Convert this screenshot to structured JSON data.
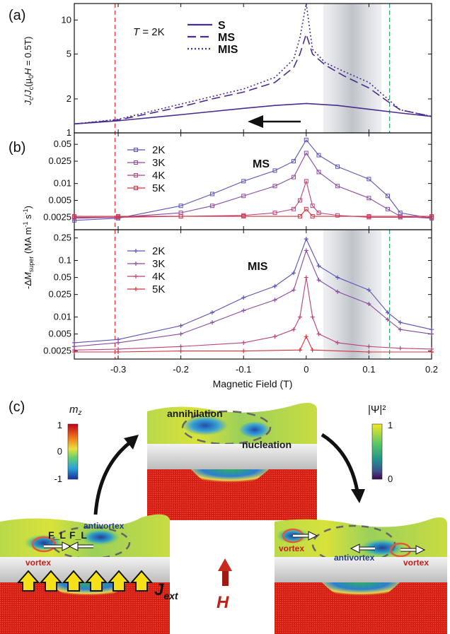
{
  "panels": {
    "a_label": "(a)",
    "b_label": "(b)",
    "c_label": "(c)"
  },
  "chart_data": [
    {
      "type": "line",
      "panel": "(a)",
      "ylabel": "J_c/J_c(μ0H = 0.5T)",
      "yscale": "log",
      "ylim": [
        1,
        14
      ],
      "xlim": [
        -0.37,
        0.2
      ],
      "yticks": [
        "1",
        "2",
        "5",
        "10"
      ],
      "annotation": "T = 2K",
      "arrow": "pointing toward negative field (sweep direction)",
      "legend_position": "top-center",
      "series": [
        {
          "name": "S",
          "style": "solid",
          "color": "#4a2c8f",
          "x": [
            -0.37,
            -0.3,
            -0.2,
            -0.1,
            -0.05,
            0.0,
            0.05,
            0.1,
            0.15,
            0.2
          ],
          "y": [
            1.2,
            1.28,
            1.45,
            1.65,
            1.75,
            1.82,
            1.75,
            1.62,
            1.5,
            1.4
          ]
        },
        {
          "name": "MS",
          "style": "dashed",
          "color": "#4a2c8f",
          "x": [
            -0.37,
            -0.3,
            -0.2,
            -0.15,
            -0.1,
            -0.05,
            -0.02,
            -0.01,
            0.0,
            0.01,
            0.03,
            0.06,
            0.1,
            0.13,
            0.15,
            0.2
          ],
          "y": [
            1.2,
            1.3,
            1.7,
            2.0,
            2.3,
            2.8,
            3.8,
            5.0,
            7.5,
            5.0,
            4.0,
            3.2,
            2.5,
            1.9,
            1.6,
            1.4
          ]
        },
        {
          "name": "MIS",
          "style": "dotted",
          "color": "#4a2c8f",
          "x": [
            -0.37,
            -0.3,
            -0.2,
            -0.15,
            -0.1,
            -0.05,
            -0.02,
            -0.01,
            0.0,
            0.01,
            0.03,
            0.06,
            0.1,
            0.13,
            0.15,
            0.2
          ],
          "y": [
            1.2,
            1.32,
            1.8,
            2.1,
            2.45,
            3.1,
            4.5,
            7.0,
            14.0,
            5.5,
            4.2,
            3.5,
            2.8,
            2.0,
            1.6,
            1.4
          ]
        }
      ]
    },
    {
      "type": "line",
      "panel": "(b) top",
      "title": "MS",
      "yscale": "log",
      "ylim": [
        0.0015,
        0.08
      ],
      "yticks": [
        "0.0025",
        "0.005",
        "0.01",
        "0.025",
        "0.05"
      ],
      "legend_position": "top-left",
      "series": [
        {
          "name": "2K",
          "color": "#5b52b8",
          "x": [
            -0.37,
            -0.3,
            -0.2,
            -0.15,
            -0.1,
            -0.05,
            -0.02,
            0.0,
            0.02,
            0.05,
            0.1,
            0.13,
            0.15,
            0.2
          ],
          "y": [
            0.0022,
            0.0024,
            0.004,
            0.0065,
            0.011,
            0.017,
            0.025,
            0.06,
            0.032,
            0.02,
            0.012,
            0.006,
            0.003,
            0.0024
          ]
        },
        {
          "name": "3K",
          "color": "#8a4aa0",
          "x": [
            -0.37,
            -0.3,
            -0.2,
            -0.15,
            -0.1,
            -0.05,
            -0.02,
            0.0,
            0.02,
            0.05,
            0.1,
            0.13,
            0.15,
            0.2
          ],
          "y": [
            0.0024,
            0.0025,
            0.003,
            0.004,
            0.006,
            0.009,
            0.013,
            0.035,
            0.016,
            0.009,
            0.0055,
            0.0035,
            0.0026,
            0.0024
          ]
        },
        {
          "name": "4K",
          "color": "#b8427a",
          "x": [
            -0.37,
            -0.3,
            -0.2,
            -0.1,
            -0.05,
            -0.02,
            -0.01,
            0.0,
            0.01,
            0.02,
            0.05,
            0.1,
            0.15,
            0.2
          ],
          "y": [
            0.0025,
            0.0025,
            0.0026,
            0.0027,
            0.003,
            0.0035,
            0.005,
            0.011,
            0.004,
            0.003,
            0.0027,
            0.0025,
            0.0025,
            0.0025
          ]
        },
        {
          "name": "5K",
          "color": "#d6323c",
          "x": [
            -0.37,
            -0.3,
            -0.2,
            -0.1,
            -0.01,
            0.0,
            0.01,
            0.1,
            0.2
          ],
          "y": [
            0.0026,
            0.0026,
            0.0026,
            0.0026,
            0.0026,
            0.0035,
            0.0026,
            0.0026,
            0.0026
          ]
        }
      ]
    },
    {
      "type": "line",
      "panel": "(b) bottom",
      "title": "MIS",
      "yscale": "log",
      "ylim": [
        0.0018,
        0.35
      ],
      "yticks": [
        "0.0025",
        "0.005",
        "0.01",
        "0.025",
        "0.05",
        "0.1",
        "0.25"
      ],
      "xlabel": "Magnetic Field (T)",
      "xticks": [
        "-0.3",
        "-0.2",
        "-0.1",
        "0",
        "0.1",
        "0.2"
      ],
      "legend_position": "top-left",
      "series": [
        {
          "name": "2K",
          "color": "#5b52b8",
          "x": [
            -0.37,
            -0.3,
            -0.2,
            -0.15,
            -0.1,
            -0.05,
            -0.02,
            0.0,
            0.02,
            0.05,
            0.1,
            0.13,
            0.15,
            0.2
          ],
          "y": [
            0.0035,
            0.004,
            0.007,
            0.012,
            0.022,
            0.035,
            0.06,
            0.24,
            0.08,
            0.05,
            0.03,
            0.012,
            0.008,
            0.006
          ]
        },
        {
          "name": "3K",
          "color": "#8a4aa0",
          "x": [
            -0.37,
            -0.3,
            -0.2,
            -0.15,
            -0.1,
            -0.05,
            -0.02,
            0.0,
            0.02,
            0.05,
            0.1,
            0.13,
            0.15,
            0.2
          ],
          "y": [
            0.003,
            0.0035,
            0.005,
            0.008,
            0.013,
            0.02,
            0.03,
            0.15,
            0.045,
            0.028,
            0.017,
            0.009,
            0.006,
            0.005
          ]
        },
        {
          "name": "4K",
          "color": "#b8427a",
          "x": [
            -0.37,
            -0.3,
            -0.2,
            -0.1,
            -0.05,
            -0.02,
            -0.01,
            0.0,
            0.01,
            0.02,
            0.05,
            0.1,
            0.15,
            0.2
          ],
          "y": [
            0.0026,
            0.0027,
            0.003,
            0.0035,
            0.0045,
            0.006,
            0.01,
            0.05,
            0.01,
            0.005,
            0.0035,
            0.003,
            0.0028,
            0.0027
          ]
        },
        {
          "name": "5K",
          "color": "#d6323c",
          "x": [
            -0.37,
            -0.3,
            -0.2,
            -0.1,
            -0.01,
            0.0,
            0.01,
            0.1,
            0.2
          ],
          "y": [
            0.0024,
            0.0024,
            0.0025,
            0.0025,
            0.0026,
            0.0045,
            0.0026,
            0.0024,
            0.0024
          ]
        }
      ]
    }
  ],
  "shared": {
    "ylabel_b": "-ΔM_super (MA m⁻¹ s⁻¹)",
    "red_dashed_line_x": -0.305,
    "green_dashed_line_x": 0.133,
    "shaded_band_x": [
      0.027,
      0.12
    ]
  },
  "schematic": {
    "colorbar_mz": {
      "title": "m_z",
      "ticks": [
        "1",
        "0",
        "-1"
      ]
    },
    "colorbar_psi": {
      "title": "|Ψ|²",
      "ticks": [
        "1",
        "0"
      ]
    },
    "top_labels": [
      "annihilation",
      "nucleation"
    ],
    "left_labels": [
      "F_L",
      "F_L",
      "antivortex",
      "vortex"
    ],
    "left_current": "J_ext",
    "field_label": "H",
    "right_labels": [
      "vortex",
      "antivortex",
      "vortex"
    ]
  }
}
